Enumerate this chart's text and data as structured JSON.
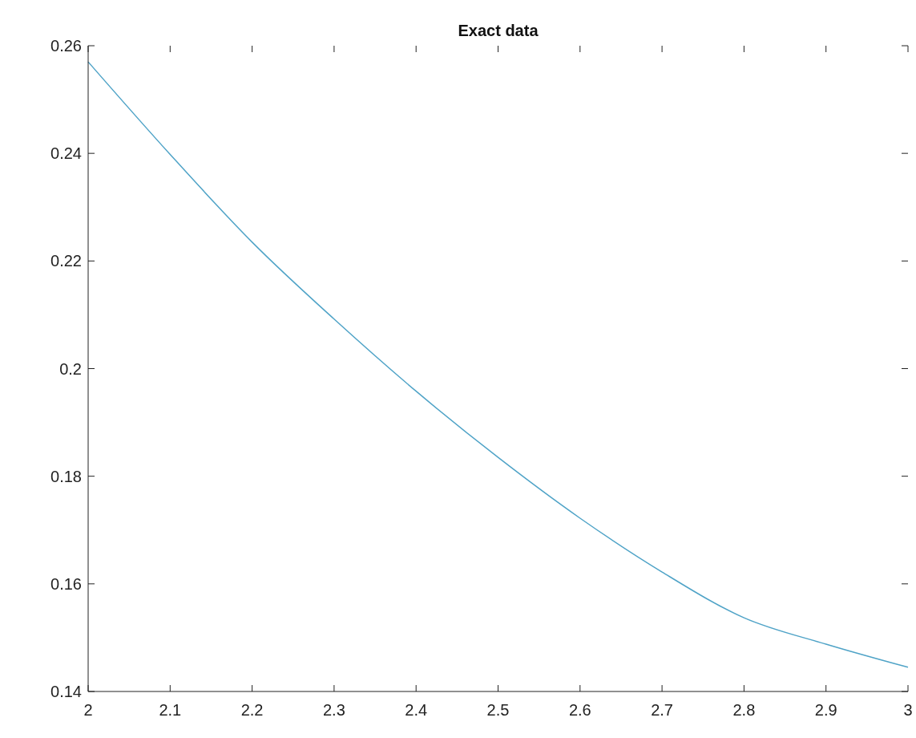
{
  "chart_data": {
    "type": "line",
    "title": "Exact data",
    "x": [
      2,
      2.1,
      2.2,
      2.3,
      2.4,
      2.5,
      2.6,
      2.7,
      2.8,
      2.9,
      3
    ],
    "series": [
      {
        "color": "#4fa3c7",
        "values": [
          0.257,
          0.2398,
          0.2235,
          0.2092,
          0.1958,
          0.1835,
          0.1722,
          0.1622,
          0.1537,
          0.1488,
          0.1445
        ]
      }
    ],
    "xlim": [
      2,
      3
    ],
    "xticks": [
      2,
      2.1,
      2.2,
      2.3,
      2.4,
      2.5,
      2.6,
      2.7,
      2.8,
      2.9,
      3
    ],
    "ylim": [
      0.14,
      0.26
    ],
    "yticks": [
      0.14,
      0.16,
      0.18,
      0.2,
      0.22,
      0.24,
      0.26
    ],
    "marker": "none",
    "line_style": "solid"
  }
}
